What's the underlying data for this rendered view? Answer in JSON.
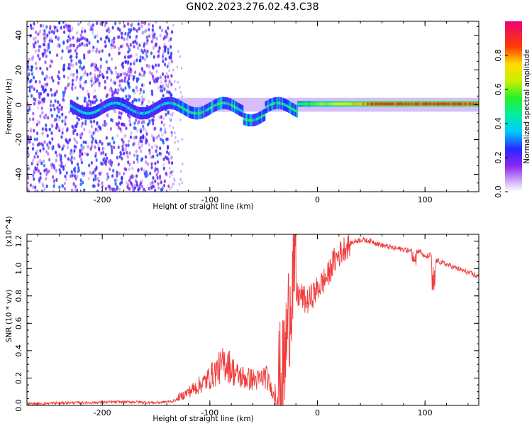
{
  "title": "GN02.2023.276.02.43.C38",
  "chart_data": [
    {
      "type": "heatmap",
      "xlabel": "Height of straight line (km)",
      "ylabel": "Frequency (Hz)",
      "xlim": [
        -270,
        150
      ],
      "ylim": [
        -50,
        48
      ],
      "x_ticks": [
        -200,
        -100,
        0,
        100
      ],
      "x_tick_labels": [
        "-200",
        "-100",
        "0",
        "100"
      ],
      "y_ticks": [
        40,
        20,
        0,
        -20,
        -40
      ],
      "y_tick_labels": [
        "40",
        "20",
        "0",
        "-20",
        "-40"
      ],
      "colorbar": {
        "label": "Normalized spectral amplitude",
        "range": [
          0,
          1
        ],
        "ticks": [
          0.0,
          0.2,
          0.4,
          0.6,
          0.8
        ],
        "tick_labels": [
          "0.0",
          "0.2",
          "0.4",
          "0.6",
          "0.8"
        ],
        "colormap": "rainbow (purple-blue-cyan-green-yellow-red-magenta)"
      },
      "description_points": [
        {
          "x_range": [
            -270,
            -135
          ],
          "content": "broadband noise across all frequencies, low amplitude (0.1-0.3)"
        },
        {
          "x_range": [
            -135,
            -20
          ],
          "content": "band near 0 Hz, amplitude 0.3-0.6, wobbling between -10 and +4 Hz"
        },
        {
          "x_range": [
            -20,
            150
          ],
          "content": "narrow band near 0 Hz, amplitude rising to 0.8-1.0 beyond 50 km"
        }
      ]
    },
    {
      "type": "line",
      "xlabel": "Height of straight line (km)",
      "ylabel": "SNR (10 * v/v)",
      "y_multiplier": "(x10^4)",
      "xlim": [
        -270,
        150
      ],
      "ylim": [
        0,
        1.25
      ],
      "x_ticks": [
        -200,
        -100,
        0,
        100
      ],
      "x_tick_labels": [
        "-200",
        "-100",
        "0",
        "100"
      ],
      "y_ticks": [
        0.0,
        0.2,
        0.4,
        0.6,
        0.8,
        1.0,
        1.2
      ],
      "y_tick_labels": [
        "0.0",
        "0.2",
        "0.4",
        "0.6",
        "0.8",
        "1.0",
        "1.2"
      ],
      "color": "#f03c3c",
      "series": [
        {
          "x": [
            -270,
            -250,
            -230,
            -210,
            -190,
            -170,
            -150,
            -135,
            -125,
            -115,
            -105,
            -95,
            -85,
            -75,
            -65,
            -55,
            -48,
            -40,
            -32,
            -28,
            -25,
            -22,
            -20,
            -15,
            -10,
            -5,
            0,
            5,
            10,
            15,
            20,
            25,
            30,
            35,
            40,
            50,
            60,
            70,
            80,
            90,
            95,
            100,
            105,
            110,
            120,
            130,
            140,
            150
          ],
          "y": [
            0.01,
            0.015,
            0.02,
            0.02,
            0.025,
            0.025,
            0.02,
            0.03,
            0.06,
            0.1,
            0.14,
            0.2,
            0.26,
            0.18,
            0.16,
            0.15,
            0.18,
            0.05,
            0.1,
            0.45,
            0.7,
            0.95,
            0.8,
            0.8,
            0.75,
            0.8,
            0.85,
            0.9,
            0.95,
            1.05,
            1.1,
            1.15,
            1.18,
            1.2,
            1.21,
            1.2,
            1.17,
            1.15,
            1.14,
            1.12,
            1.13,
            1.08,
            1.1,
            1.06,
            1.03,
            1.0,
            0.97,
            0.94
          ]
        }
      ]
    }
  ]
}
